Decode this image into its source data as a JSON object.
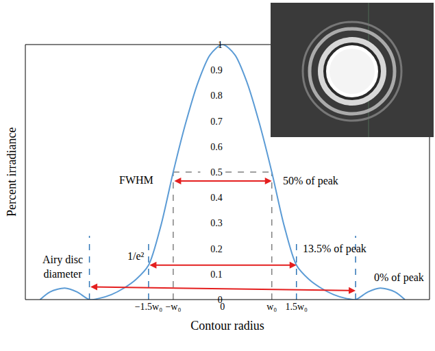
{
  "chart_data": {
    "type": "line",
    "x_label": "Contour radius",
    "y_label": "Percent irradiance",
    "color": "#5b9bd5",
    "x": [
      -3.7,
      -3.5,
      -3.2,
      -2.95,
      -2.7,
      -2.5,
      -2.25,
      -2,
      -1.75,
      -1.5,
      -1.25,
      -1,
      -0.75,
      -0.5,
      -0.25,
      0,
      0.25,
      0.5,
      0.75,
      1,
      1.25,
      1.5,
      1.75,
      2,
      2.25,
      2.5,
      2.7,
      2.95,
      3.2,
      3.5,
      3.7
    ],
    "values": [
      0,
      0.03,
      0.045,
      0.03,
      0,
      0.005,
      0.02,
      0.045,
      0.08,
      0.135,
      0.29,
      0.5,
      0.69,
      0.85,
      0.96,
      1,
      0.96,
      0.85,
      0.69,
      0.5,
      0.29,
      0.135,
      0.08,
      0.045,
      0.02,
      0.005,
      0,
      0.03,
      0.045,
      0.03,
      0
    ],
    "xlim": [
      -4,
      4.2
    ],
    "ylim": [
      0,
      1
    ],
    "xticks": [
      {
        "value": -1.5,
        "label": "−1.5w₀"
      },
      {
        "value": -1,
        "label": "−w₀"
      },
      0,
      {
        "value": 1,
        "label": "w₀"
      },
      {
        "value": 1.5,
        "label": "1.5w₀"
      }
    ],
    "yticks": [
      0,
      0.1,
      0.2,
      0.3,
      0.4,
      0.5,
      0.6,
      0.7,
      0.8,
      0.9,
      1
    ],
    "grid": false,
    "markers": [
      {
        "name": "FWHM",
        "label": "50% of peak",
        "level": 0.5,
        "half_width": 1
      },
      {
        "name": "1/e²",
        "label": "13.5% of peak",
        "level": 0.135,
        "half_width": 1.5
      },
      {
        "name": "Airy disc diameter",
        "label": "0% of peak",
        "level": 0,
        "half_width": 2.7
      }
    ]
  }
}
